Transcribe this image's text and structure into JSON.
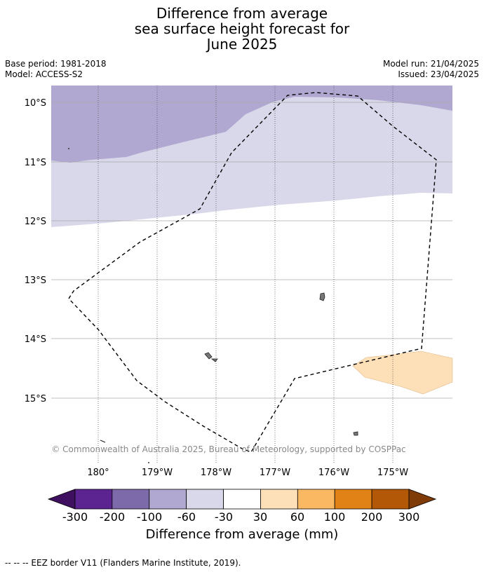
{
  "title": {
    "line1": "Difference from average",
    "line2": "sea surface height forecast for",
    "line3": "June 2025"
  },
  "meta": {
    "base_period": "Base period: 1981-2018",
    "model": "Model: ACCESS-S2",
    "model_run": "Model run: 21/04/2025",
    "issued": "Issued: 23/04/2025"
  },
  "map": {
    "lat_labels": [
      "10°S",
      "11°S",
      "12°S",
      "13°S",
      "14°S",
      "15°S"
    ],
    "lon_labels": [
      "180°",
      "179°W",
      "178°W",
      "177°W",
      "176°W",
      "175°W"
    ],
    "copyright": "© Commonwealth of Australia 2025, Bureau of Meteorology, supported by COSPPac",
    "colors": {
      "-200_to_-100": "#7d6aaa",
      "-100_to_-60": "#b0a8d0",
      "-60_to_-30": "#d8d8ea",
      "-30_to_30": "#ffffff",
      "30_to_60": "#fde0b8"
    }
  },
  "colorbar": {
    "ticks": [
      "-300",
      "-200",
      "-100",
      "-60",
      "-30",
      "30",
      "60",
      "100",
      "200",
      "300"
    ],
    "colors": [
      "#3f1060",
      "#5b2491",
      "#7d6aaa",
      "#b0a8d0",
      "#d8d8ea",
      "#ffffff",
      "#fde0b8",
      "#fbb862",
      "#e08216",
      "#b35806",
      "#7f3b08"
    ],
    "label": "Difference from average (mm)"
  },
  "footer": "--  --  -- EEZ border V11 (Flanders Marine Institute, 2019)."
}
